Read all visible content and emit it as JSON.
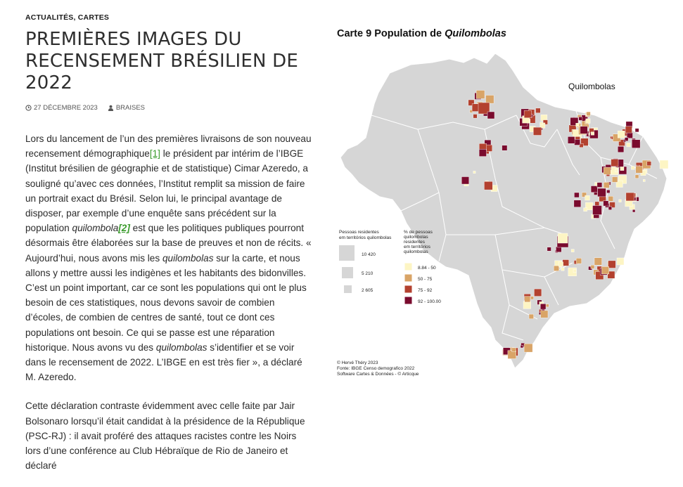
{
  "categories": {
    "first": "ACTUALITÉS",
    "separator": ", ",
    "second": "CARTES"
  },
  "post": {
    "title": "PREMIÈRES IMAGES DU RECENSEMENT BRÉSILIEN DE 2022",
    "date": "27 DÉCEMBRE 2023",
    "author": "BRAISES",
    "date_icon": "clock-icon",
    "author_icon": "user-icon"
  },
  "paragraph1": {
    "s1": "Lors du lancement de l’un des premières livraisons de son nouveau recensement démographique",
    "ref1": "[1]",
    "s2": " le président par intérim de l’IBGE (Institut brésilien de géographie et de statistique) Cimar Azeredo, a souligné qu’avec ces données, l’Institut remplit sa mission de faire un portrait exact du Brésil. Selon lui, le principal avantage de disposer, par exemple d’une enquête sans précédent sur la population ",
    "i1": "quilom­bola",
    "ref2": "[2]",
    "s3": " est que les politiques publiques pourront désormais être éla­borées sur la base de preuves et non de récits. « Aujourd’hui, nous avons mis les ",
    "i2": "quilombolas",
    "s4": " sur la carte, et nous allons y mettre aussi les indigènes et les habitants des bidonvilles. C’est un point impor­tant, car ce sont les populations qui ont le plus besoin de ces statis­tiques, nous devons savoir de combien d’écoles, de combien de centres de santé, tout ce dont ces populations ont besoin. Ce qui se passe est une réparation historique. Nous avons vu des ",
    "i3": "quilombolas",
    "s5": " s’identifier et se voir dans le recensement de 2022. L’IBGE en est très fier », a déclaré M. Azeredo."
  },
  "paragraph2": "Cette déclaration contraste évidemment avec celle faite par Jair Bolsonaro lorsqu’il était candidat à la présidence de la République (PSC-RJ) : il avait proféré des attaques racistes contre les Noirs lors d’une conférence au Club Hébraïque de Rio de Janeiro et déclaré",
  "map": {
    "title_prefix": "Carte 9 Population de ",
    "title_italic": "Quilombolas",
    "inner_title": "Quilombolas",
    "size_legend_title": [
      "Pessoas residentes",
      "em territórios quilombolas"
    ],
    "size_legend_values": [
      "10 420",
      "5 210",
      "2 605"
    ],
    "color_legend_title": [
      "% de pessoas",
      "quilombolas",
      "residentes",
      "em territórios",
      "quilombolas"
    ],
    "color_legend_classes": [
      {
        "label": "8.84 - 50",
        "color": "#fdf5c4"
      },
      {
        "label": "50 - 75",
        "color": "#d9a467"
      },
      {
        "label": "75 - 92",
        "color": "#b3412f"
      },
      {
        "label": "92  - 100.00",
        "color": "#7a0b2e"
      }
    ],
    "credits": [
      "© Hervé Théry 2023",
      "Fonte: IBGE Censo demografico 2022",
      "Software Cartes & Données - © Articque"
    ],
    "land_color": "#d6d6d6",
    "border_color": "#ffffff"
  }
}
